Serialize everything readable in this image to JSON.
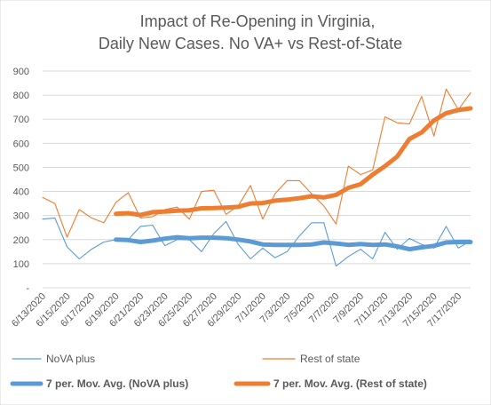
{
  "chart_data": {
    "type": "line",
    "title_line1": "Impact of Re-Opening in Virginia,",
    "title_line2": "Daily New Cases. No VA+ vs Rest-of-State",
    "xlabel": "",
    "ylabel": "",
    "ylim": [
      0,
      900
    ],
    "yticks": [
      0,
      100,
      200,
      300,
      400,
      500,
      600,
      700,
      800,
      900
    ],
    "ytick_labels": [
      "-",
      "100",
      "200",
      "300",
      "400",
      "500",
      "600",
      "700",
      "800",
      "900"
    ],
    "grid": true,
    "legend_position": "bottom",
    "x": [
      "6/13/2020",
      "6/14/2020",
      "6/15/2020",
      "6/16/2020",
      "6/17/2020",
      "6/18/2020",
      "6/19/2020",
      "6/20/2020",
      "6/21/2020",
      "6/22/2020",
      "6/23/2020",
      "6/24/2020",
      "6/25/2020",
      "6/26/2020",
      "6/27/2020",
      "6/28/2020",
      "6/29/2020",
      "6/30/2020",
      "7/1/2020",
      "7/2/2020",
      "7/3/2020",
      "7/4/2020",
      "7/5/2020",
      "7/6/2020",
      "7/7/2020",
      "7/8/2020",
      "7/9/2020",
      "7/10/2020",
      "7/11/2020",
      "7/12/2020",
      "7/13/2020",
      "7/14/2020",
      "7/15/2020",
      "7/16/2020",
      "7/17/2020",
      "7/18/2020"
    ],
    "x_tick_labels": [
      "6/13/2020",
      "6/15/2020",
      "6/17/2020",
      "6/19/2020",
      "6/21/2020",
      "6/23/2020",
      "6/25/2020",
      "6/27/2020",
      "6/29/2020",
      "7/1/2020",
      "7/3/2020",
      "7/5/2020",
      "7/7/2020",
      "7/9/2020",
      "7/11/2020",
      "7/13/2020",
      "7/15/2020",
      "7/17/2020"
    ],
    "series": [
      {
        "name": "NoVA plus",
        "color": "#5b9bd5",
        "style": "thin",
        "values": [
          285,
          290,
          170,
          120,
          160,
          190,
          200,
          200,
          255,
          260,
          175,
          200,
          200,
          150,
          225,
          275,
          180,
          120,
          165,
          125,
          150,
          215,
          270,
          270,
          90,
          130,
          160,
          120,
          230,
          160,
          205,
          180,
          165,
          255,
          165,
          195
        ]
      },
      {
        "name": "Rest of state",
        "color": "#ed7d31",
        "style": "thin",
        "values": [
          375,
          350,
          210,
          325,
          290,
          270,
          355,
          395,
          290,
          295,
          325,
          335,
          285,
          400,
          405,
          305,
          340,
          425,
          285,
          390,
          445,
          445,
          390,
          340,
          265,
          505,
          470,
          490,
          710,
          685,
          680,
          795,
          630,
          825,
          740,
          810
        ]
      },
      {
        "name": "7 per. Mov. Avg. (NoVA plus)",
        "color": "#5b9bd5",
        "style": "thick",
        "values": [
          null,
          null,
          null,
          null,
          null,
          null,
          200,
          198,
          190,
          196,
          204,
          210,
          206,
          208,
          208,
          206,
          200,
          192,
          180,
          178,
          178,
          178,
          180,
          188,
          184,
          178,
          182,
          178,
          180,
          172,
          160,
          168,
          174,
          188,
          190,
          190
        ]
      },
      {
        "name": "7 per. Mov. Avg. (Rest of state)",
        "color": "#ed7d31",
        "style": "thick",
        "values": [
          null,
          null,
          null,
          null,
          null,
          null,
          307,
          310,
          302,
          314,
          316,
          320,
          322,
          330,
          331,
          333,
          336,
          350,
          352,
          362,
          366,
          372,
          380,
          375,
          386,
          415,
          430,
          470,
          505,
          545,
          618,
          645,
          695,
          725,
          738,
          745
        ]
      }
    ]
  }
}
